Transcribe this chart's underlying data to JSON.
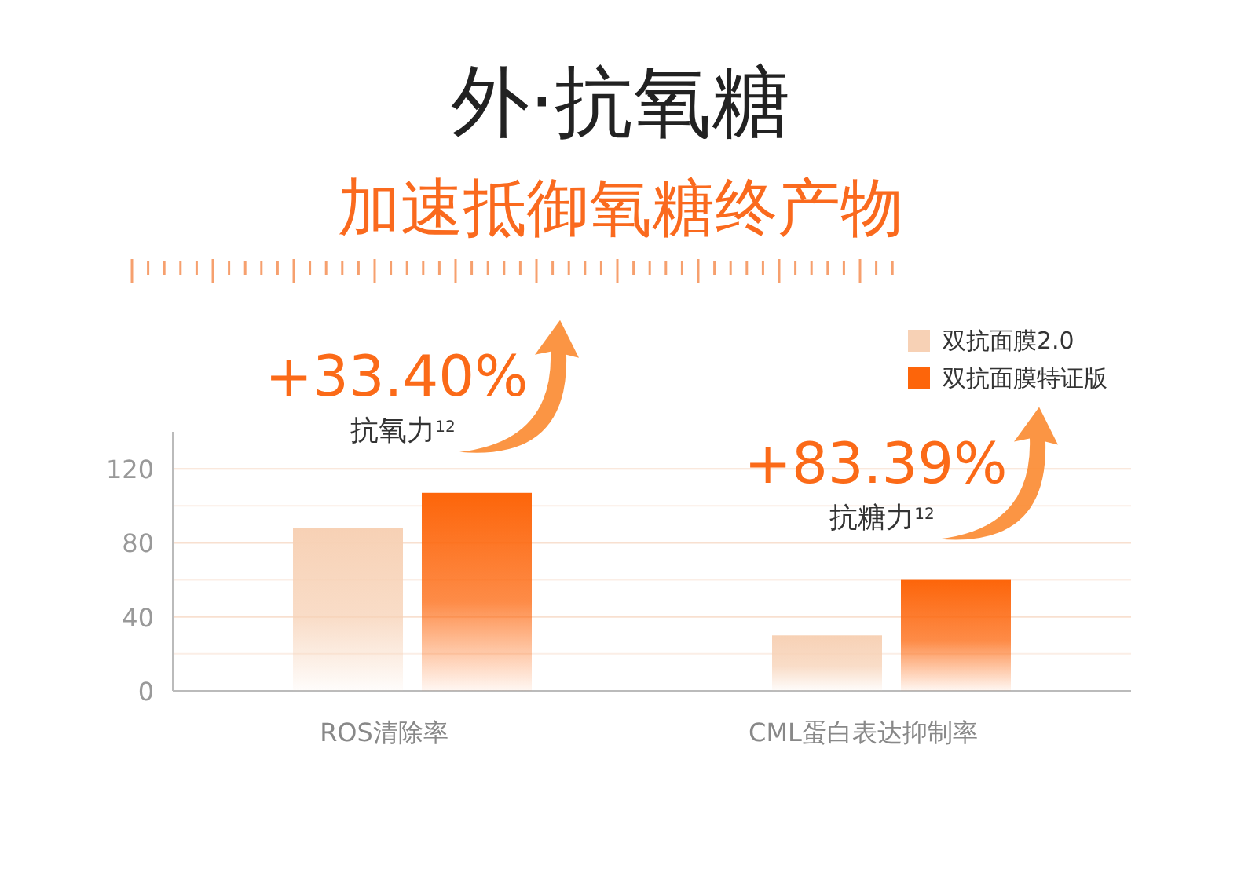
{
  "chart_data": {
    "type": "bar",
    "title": "外·抗氧糖",
    "subtitle": "加速抵御氧糖终产物",
    "categories": [
      "ROS清除率",
      "CML蛋白表达抑制率"
    ],
    "series": [
      {
        "name": "双抗面膜2.0",
        "color": "#f7d1b5",
        "values": [
          88,
          30
        ]
      },
      {
        "name": "双抗面膜特证版",
        "color": "#fd650a",
        "values": [
          107,
          60
        ]
      }
    ],
    "ylim": [
      0,
      140
    ],
    "yticks": [
      0,
      {
        "value": 20,
        "label": null
      },
      40,
      {
        "value": 60,
        "label": null
      },
      80,
      {
        "value": 100,
        "label": null
      },
      120
    ],
    "grid": "y",
    "legend": "top right",
    "annotations": [
      "+33.40%",
      "抗氧力$^{12}$",
      "+83.39%",
      "抗糖力$^{12}$"
    ]
  }
}
